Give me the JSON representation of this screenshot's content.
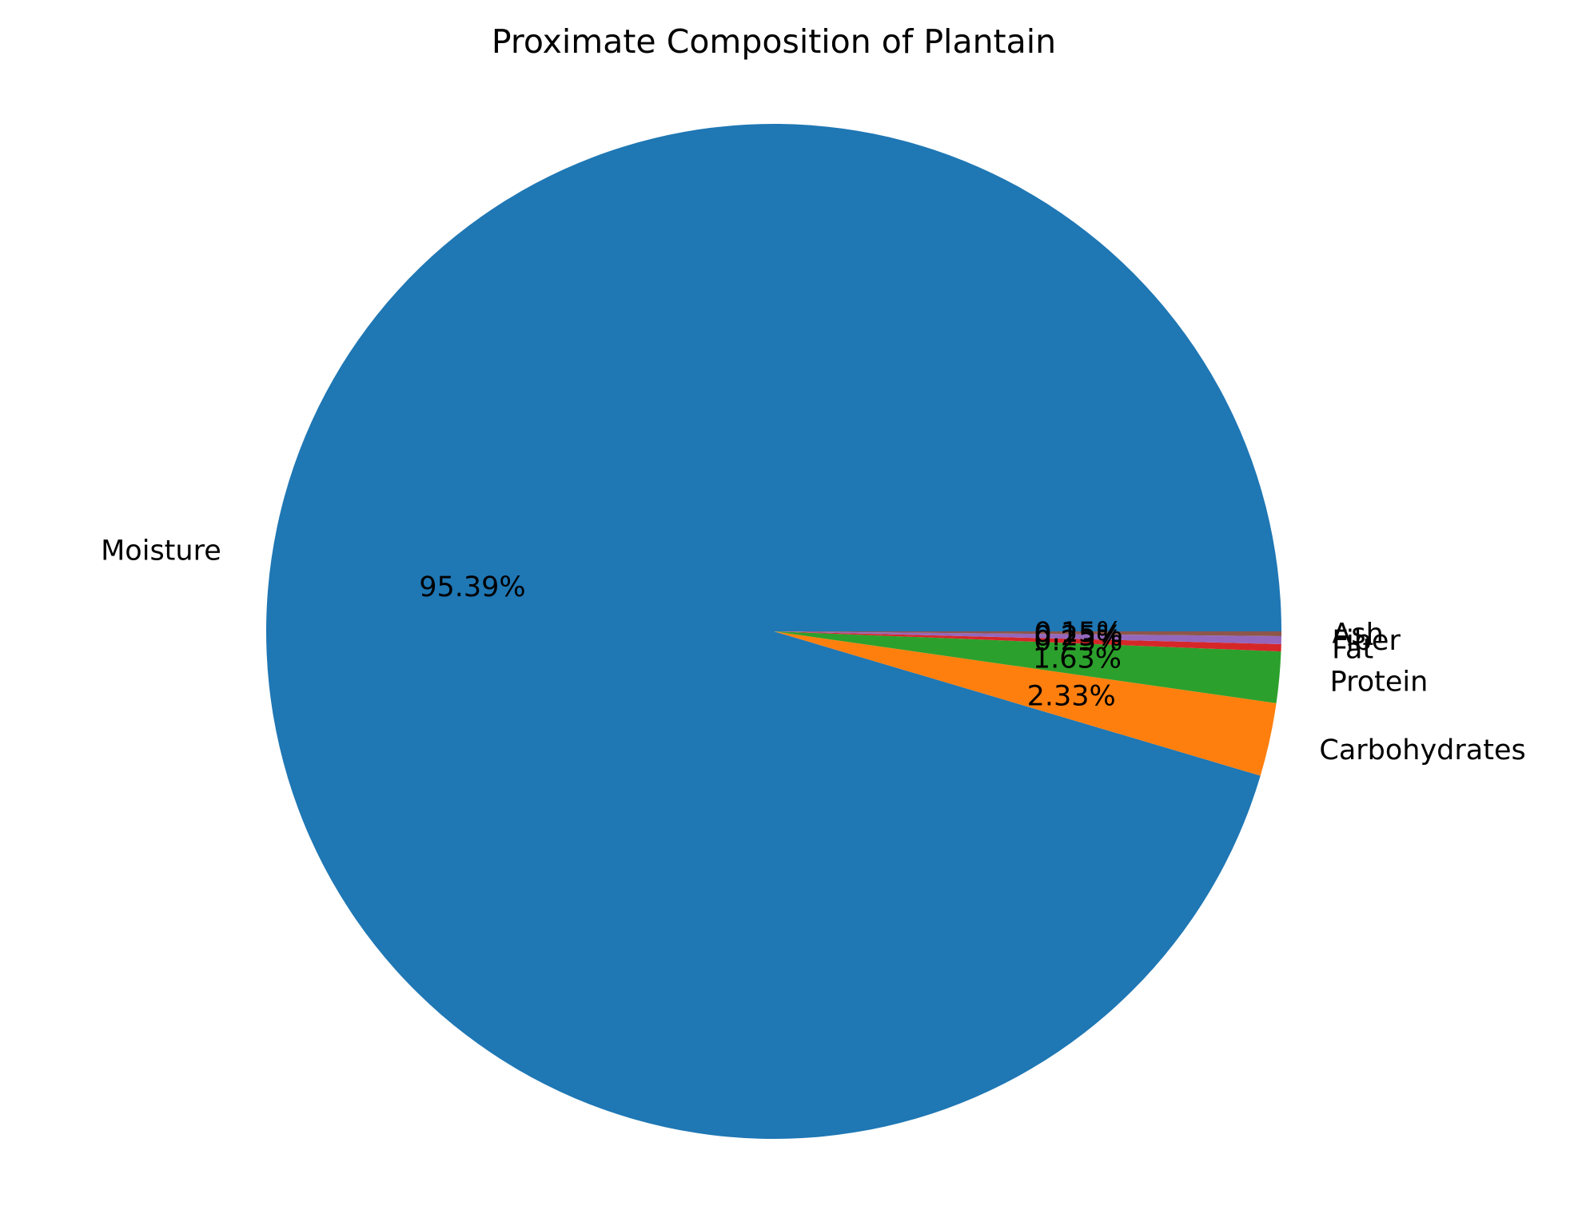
{
  "chart_data": {
    "type": "pie",
    "title": "Proximate Composition of Plantain",
    "slices": [
      {
        "label": "Moisture",
        "value": 95.39,
        "pct_label": "95.39%",
        "color": "#1f77b4"
      },
      {
        "label": "Carbohydrates",
        "value": 2.33,
        "pct_label": "2.33%",
        "color": "#ff7f0e"
      },
      {
        "label": "Protein",
        "value": 1.63,
        "pct_label": "1.63%",
        "color": "#2ca02c"
      },
      {
        "label": "Fat",
        "value": 0.23,
        "pct_label": "0.23%",
        "color": "#d62728"
      },
      {
        "label": "Fiber",
        "value": 0.25,
        "pct_label": "0.25%",
        "color": "#9467bd"
      },
      {
        "label": "Ash",
        "value": 0.15,
        "pct_label": "0.15%",
        "color": "#8c564b"
      }
    ],
    "start_angle": 0,
    "direction": "counterclockwise",
    "legend": "none"
  }
}
